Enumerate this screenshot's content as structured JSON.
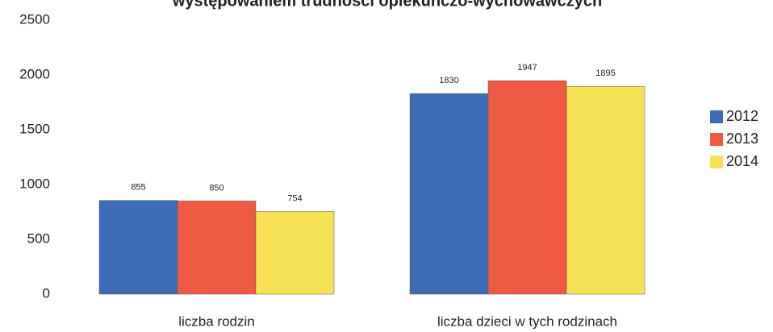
{
  "chart_data": {
    "type": "bar",
    "title": "występowaniem trudności opiekuńczo-wychowawczych",
    "categories": [
      "liczba rodzin",
      "liczba dzieci w  tych rodzinach"
    ],
    "series": [
      {
        "name": "2012",
        "color": "#3b6db7",
        "values": [
          855,
          1830
        ]
      },
      {
        "name": "2013",
        "color": "#f05a42",
        "values": [
          850,
          1947
        ]
      },
      {
        "name": "2014",
        "color": "#f6e154",
        "values": [
          754,
          1895
        ]
      }
    ],
    "ylim": [
      0,
      2500
    ],
    "yticks": [
      0,
      500,
      1000,
      1500,
      2000,
      2500
    ],
    "grid": false,
    "legend": "right"
  }
}
